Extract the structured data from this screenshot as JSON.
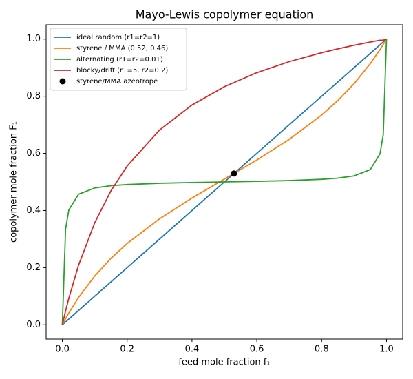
{
  "chart_data": {
    "type": "line",
    "title": "Mayo-Lewis copolymer equation",
    "xlabel": "feed mole fraction f₁",
    "ylabel": "copolymer mole fraction F₁",
    "x": [
      0,
      0.01,
      0.02,
      0.05,
      0.1,
      0.15,
      0.2,
      0.3,
      0.4,
      0.5,
      0.6,
      0.7,
      0.8,
      0.85,
      0.9,
      0.95,
      0.98,
      0.99,
      1
    ],
    "series": [
      {
        "name": "ideal random (r1=r2=1)",
        "color": "#1f77b4",
        "values": [
          0,
          0.01,
          0.02,
          0.05,
          0.1,
          0.15,
          0.2,
          0.3,
          0.4,
          0.5,
          0.6,
          0.7,
          0.8,
          0.85,
          0.9,
          0.95,
          0.98,
          0.99,
          1
        ]
      },
      {
        "name": "styrene / MMA (0.52, 0.46)",
        "color": "#ff7f0e",
        "values": [
          0,
          0.0211,
          0.0412,
          0.0954,
          0.1707,
          0.2324,
          0.2846,
          0.371,
          0.4435,
          0.5101,
          0.5767,
          0.649,
          0.7342,
          0.785,
          0.8438,
          0.914,
          0.9633,
          0.9812,
          1
        ]
      },
      {
        "name": "alternating (r1=r2=0.01)",
        "color": "#2ca02c",
        "values": [
          0,
          0.3345,
          0.4017,
          0.4568,
          0.4788,
          0.4867,
          0.4908,
          0.4953,
          0.4979,
          0.5,
          0.5021,
          0.5047,
          0.5092,
          0.5133,
          0.5212,
          0.5432,
          0.5983,
          0.6655,
          1
        ]
      },
      {
        "name": "blocky/drift (r1=5, r2=0.2)",
        "color": "#d62728",
        "values": [
          0,
          0.0481,
          0.0926,
          0.2083,
          0.3571,
          0.4688,
          0.5556,
          0.6818,
          0.7692,
          0.8333,
          0.8824,
          0.9211,
          0.9524,
          0.9659,
          0.9783,
          0.9896,
          0.9959,
          0.996,
          1
        ]
      },
      {
        "name": "styrene/MMA azeotrope",
        "type": "scatter",
        "color": "#000000",
        "x": [
          0.5294
        ],
        "values": [
          0.5294
        ]
      }
    ],
    "xlim": [
      -0.05,
      1.05
    ],
    "ylim": [
      -0.05,
      1.05
    ],
    "xticks": [
      {
        "value": 0,
        "label": "0.0"
      },
      0.2,
      0.4,
      0.6,
      0.8,
      {
        "value": 1,
        "label": "1.0"
      }
    ],
    "yticks": [
      {
        "value": 0,
        "label": "0.0"
      },
      0.2,
      0.4,
      0.6,
      0.8,
      {
        "value": 1,
        "label": "1.0"
      }
    ],
    "grid": false,
    "legend": "upper left"
  }
}
